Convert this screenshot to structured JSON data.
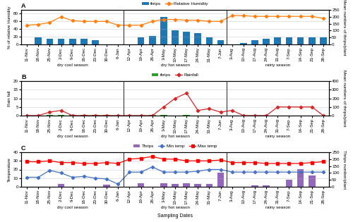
{
  "chart_data": [
    {
      "type": "bar",
      "title": "A",
      "categories": [
        "11-Nov",
        "18-Nov",
        "25-Nov",
        "2-Dec",
        "9-Dec",
        "16-Dec",
        "23-Dec",
        "30-Dec",
        "6-Jan",
        "12-Apr",
        "19-Apr",
        "26-Apr",
        "3-May",
        "10-May",
        "17-May",
        "24-May",
        "31-May",
        "7-Jun",
        "3-Aug",
        "10-Aug",
        "17-Aug",
        "24-Aug",
        "31-Aug",
        "7-Sep",
        "14-Sep",
        "21-Sep",
        "28-Sep"
      ],
      "y_label": "% of relative Humidity",
      "y2_label": "Mean numbers of thrips/plant",
      "ylim": [
        0,
        90
      ],
      "yticks": [
        0,
        20,
        40,
        60,
        80
      ],
      "y2lim": [
        0,
        250
      ],
      "y2ticks": [
        0,
        50,
        100,
        150,
        200,
        250
      ],
      "grid": true,
      "legend": "upper center",
      "series": [
        {
          "name": "thrips",
          "type": "bar",
          "axis": "y2",
          "values": [
            2,
            50,
            40,
            40,
            40,
            40,
            30,
            2,
            2,
            2,
            50,
            60,
            200,
            100,
            90,
            80,
            50,
            30,
            2,
            10,
            30,
            40,
            50,
            50,
            50,
            50,
            50
          ]
        },
        {
          "name": "Relative Humidity",
          "type": "line",
          "marker": "diamond",
          "values": [
            50,
            52,
            57,
            72,
            62,
            60,
            60,
            60,
            50,
            50,
            50,
            60,
            65,
            65,
            63,
            63,
            60,
            60,
            75,
            75,
            73,
            73,
            73,
            73,
            73,
            73,
            68
          ]
        }
      ],
      "annotations": [
        {
          "text": "dry cool season",
          "span": [
            "11-Nov",
            "6-Jan"
          ]
        },
        {
          "text": "dry hot season",
          "span": [
            "12-Apr",
            "7-Jun"
          ]
        },
        {
          "text": "rainy season",
          "span": [
            "3-Aug",
            "28-Sep"
          ]
        }
      ]
    },
    {
      "type": "bar",
      "title": "B",
      "categories": [
        "11-Nov",
        "18-Nov",
        "25-Nov",
        "2-Dec",
        "9-Dec",
        "16-Dec",
        "23-Dec",
        "30-Dec",
        "6-Jan",
        "12-Apr",
        "19-Apr",
        "26-Apr",
        "3-May",
        "10-May",
        "17-May",
        "24-May",
        "31-May",
        "7-Jun",
        "3-Aug",
        "10-Aug",
        "17-Aug",
        "24-Aug",
        "31-Aug",
        "7-Sep",
        "14-Sep",
        "21-Sep",
        "28-Sep"
      ],
      "y_label": "Rain fall",
      "y2_label": "Mean numbers of thrips/plant",
      "ylim": [
        0,
        20
      ],
      "yticks": [
        0,
        5,
        10,
        15,
        20
      ],
      "y2lim": [
        0,
        400
      ],
      "y2ticks": [
        0,
        100,
        200,
        300,
        400
      ],
      "grid": true,
      "legend": "upper center",
      "series": [
        {
          "name": "thrips",
          "type": "bar",
          "axis": "y2",
          "values": [
            0,
            3,
            5,
            5,
            5,
            5,
            6,
            6,
            3,
            4,
            0,
            7,
            5,
            0,
            7,
            3,
            0,
            2,
            0,
            2,
            2,
            0,
            2,
            3,
            3,
            2,
            2
          ]
        },
        {
          "name": "Rainfall",
          "type": "line",
          "marker": "diamond",
          "values": [
            0,
            0,
            2,
            3,
            0,
            0,
            0,
            0,
            0,
            0,
            0,
            0,
            5,
            10,
            13,
            3,
            4,
            2,
            3,
            0,
            0,
            0,
            5,
            5,
            5,
            5,
            0
          ]
        }
      ],
      "annotations": [
        {
          "text": "dry cool season",
          "span": [
            "11-Nov",
            "6-Jan"
          ]
        },
        {
          "text": "dry hot season",
          "span": [
            "12-Apr",
            "7-Jun"
          ]
        },
        {
          "text": "rainy season",
          "span": [
            "3-Aug",
            "28-Sep"
          ]
        }
      ]
    },
    {
      "type": "bar",
      "title": "C",
      "categories": [
        "11-Nov",
        "18-Nov",
        "25-Nov",
        "2-Dec",
        "9-Dec",
        "16-Dec",
        "23-Dec",
        "30-Dec",
        "6-Jan",
        "12-Apr",
        "19-Apr",
        "26-Apr",
        "3-May",
        "10-May",
        "17-May",
        "24-May",
        "31-May",
        "7-Jun",
        "3-Aug",
        "10-Aug",
        "17-Aug",
        "24-Aug",
        "31-Aug",
        "7-Sep",
        "14-Sep",
        "21-Sep",
        "28-Sep"
      ],
      "x_label": "Sampling Dates",
      "y_label": "Temperature",
      "y2_label": "Thrips number/plant",
      "ylim": [
        0,
        40
      ],
      "yticks": [
        0,
        10,
        20,
        30,
        40
      ],
      "y2lim": [
        0,
        250
      ],
      "y2ticks": [
        0,
        50,
        100,
        150,
        200,
        250
      ],
      "grid": true,
      "legend": "upper center",
      "series": [
        {
          "name": "Thrips",
          "type": "bar",
          "axis": "y2",
          "values": [
            2,
            2,
            2,
            20,
            2,
            2,
            2,
            13,
            2,
            2,
            23,
            2,
            25,
            22,
            25,
            22,
            22,
            100,
            2,
            2,
            10,
            10,
            2,
            50,
            130,
            80,
            2
          ]
        },
        {
          "name": "Min temp",
          "type": "line",
          "marker": "diamond",
          "color": "#4472C4",
          "values": [
            11,
            11,
            19,
            16,
            11,
            12,
            10,
            9,
            3,
            17,
            17,
            23,
            17,
            17,
            17,
            18,
            20,
            20,
            17,
            17,
            17,
            17,
            17,
            17,
            17,
            17,
            17
          ]
        },
        {
          "name": "Max temp",
          "type": "line",
          "marker": "square",
          "color": "#FF0000",
          "values": [
            29,
            29,
            30,
            28,
            28,
            27,
            27,
            28,
            27,
            32,
            33,
            35,
            32,
            32,
            30,
            30,
            30,
            31,
            28,
            28,
            28,
            27,
            27,
            27,
            27,
            28,
            29
          ]
        }
      ],
      "annotations": [
        {
          "text": "dry cool season",
          "span": [
            "11-Nov",
            "6-Jan"
          ]
        },
        {
          "text": "dry hot season",
          "span": [
            "12-Apr",
            "7-Jun"
          ]
        },
        {
          "text": "rainy season",
          "span": [
            "3-Aug",
            "28-Sep"
          ]
        }
      ]
    }
  ]
}
